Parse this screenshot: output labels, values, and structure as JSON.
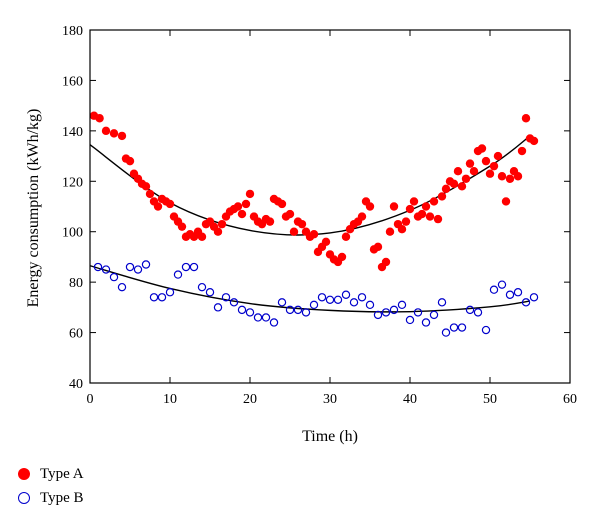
{
  "chart_data": {
    "type": "scatter",
    "xlabel": "Time (h)",
    "ylabel": "Energy consumption (kWh/kg)",
    "xlim": [
      0,
      60
    ],
    "ylim": [
      40,
      180
    ],
    "x_ticks": [
      0,
      10,
      20,
      30,
      40,
      50,
      60
    ],
    "y_ticks": [
      40,
      60,
      80,
      100,
      120,
      140,
      160,
      180
    ],
    "grid": false,
    "legend_position": "bottom-left",
    "series": [
      {
        "name": "Type A",
        "color": "#ff0000",
        "marker": "filled-circle",
        "points": [
          [
            0.5,
            146
          ],
          [
            1.2,
            145
          ],
          [
            2,
            140
          ],
          [
            3,
            139
          ],
          [
            4,
            138
          ],
          [
            4.5,
            129
          ],
          [
            5,
            128
          ],
          [
            5.5,
            123
          ],
          [
            6,
            121
          ],
          [
            6.5,
            119
          ],
          [
            7,
            118
          ],
          [
            7.5,
            115
          ],
          [
            8,
            112
          ],
          [
            8.5,
            110
          ],
          [
            9,
            113
          ],
          [
            9.5,
            112
          ],
          [
            10,
            111
          ],
          [
            10.5,
            106
          ],
          [
            11,
            104
          ],
          [
            11.5,
            102
          ],
          [
            12,
            98
          ],
          [
            12.5,
            99
          ],
          [
            13,
            98
          ],
          [
            13.5,
            100
          ],
          [
            14,
            98
          ],
          [
            14.5,
            103
          ],
          [
            15,
            104
          ],
          [
            15.5,
            102
          ],
          [
            16,
            100
          ],
          [
            16.5,
            103
          ],
          [
            17,
            106
          ],
          [
            17.5,
            108
          ],
          [
            18,
            109
          ],
          [
            18.5,
            110
          ],
          [
            19,
            107
          ],
          [
            19.5,
            111
          ],
          [
            20,
            115
          ],
          [
            20.5,
            106
          ],
          [
            21,
            104
          ],
          [
            21.5,
            103
          ],
          [
            22,
            105
          ],
          [
            22.5,
            104
          ],
          [
            23,
            113
          ],
          [
            23.5,
            112
          ],
          [
            24,
            111
          ],
          [
            24.5,
            106
          ],
          [
            25,
            107
          ],
          [
            25.5,
            100
          ],
          [
            26,
            104
          ],
          [
            26.5,
            103
          ],
          [
            27,
            100
          ],
          [
            27.5,
            98
          ],
          [
            28,
            99
          ],
          [
            28.5,
            92
          ],
          [
            29,
            94
          ],
          [
            29.5,
            96
          ],
          [
            30,
            91
          ],
          [
            30.5,
            89
          ],
          [
            31,
            88
          ],
          [
            31.5,
            90
          ],
          [
            32,
            98
          ],
          [
            32.5,
            101
          ],
          [
            33,
            103
          ],
          [
            33.5,
            104
          ],
          [
            34,
            106
          ],
          [
            34.5,
            112
          ],
          [
            35,
            110
          ],
          [
            35.5,
            93
          ],
          [
            36,
            94
          ],
          [
            36.5,
            86
          ],
          [
            37,
            88
          ],
          [
            37.5,
            100
          ],
          [
            38,
            110
          ],
          [
            38.5,
            103
          ],
          [
            39,
            101
          ],
          [
            39.5,
            104
          ],
          [
            40,
            109
          ],
          [
            40.5,
            112
          ],
          [
            41,
            106
          ],
          [
            41.5,
            107
          ],
          [
            42,
            110
          ],
          [
            42.5,
            106
          ],
          [
            43,
            112
          ],
          [
            43.5,
            105
          ],
          [
            44,
            114
          ],
          [
            44.5,
            117
          ],
          [
            45,
            120
          ],
          [
            45.5,
            119
          ],
          [
            46,
            124
          ],
          [
            46.5,
            118
          ],
          [
            47,
            121
          ],
          [
            47.5,
            127
          ],
          [
            48,
            124
          ],
          [
            48.5,
            132
          ],
          [
            49,
            133
          ],
          [
            49.5,
            128
          ],
          [
            50,
            123
          ],
          [
            50.5,
            126
          ],
          [
            51,
            130
          ],
          [
            51.5,
            122
          ],
          [
            52,
            112
          ],
          [
            52.5,
            121
          ],
          [
            53,
            124
          ],
          [
            53.5,
            122
          ],
          [
            54,
            132
          ],
          [
            54.5,
            145
          ],
          [
            55,
            137
          ],
          [
            55.5,
            136
          ]
        ],
        "fit": [
          [
            0,
            134.5
          ],
          [
            10,
            111.5
          ],
          [
            20,
            100.5
          ],
          [
            30,
            99.5
          ],
          [
            40,
            108.5
          ],
          [
            50,
            126
          ],
          [
            55,
            138
          ]
        ]
      },
      {
        "name": "Type B",
        "color": "#0000cc",
        "marker": "hollow-circle",
        "points": [
          [
            1,
            86
          ],
          [
            2,
            85
          ],
          [
            3,
            82
          ],
          [
            4,
            78
          ],
          [
            5,
            86
          ],
          [
            6,
            85
          ],
          [
            7,
            87
          ],
          [
            8,
            74
          ],
          [
            9,
            74
          ],
          [
            10,
            76
          ],
          [
            11,
            83
          ],
          [
            12,
            86
          ],
          [
            13,
            86
          ],
          [
            14,
            78
          ],
          [
            15,
            76
          ],
          [
            16,
            70
          ],
          [
            17,
            74
          ],
          [
            18,
            72
          ],
          [
            19,
            69
          ],
          [
            20,
            68
          ],
          [
            21,
            66
          ],
          [
            22,
            66
          ],
          [
            23,
            64
          ],
          [
            24,
            72
          ],
          [
            25,
            69
          ],
          [
            26,
            69
          ],
          [
            27,
            68
          ],
          [
            28,
            71
          ],
          [
            29,
            74
          ],
          [
            30,
            73
          ],
          [
            31,
            73
          ],
          [
            32,
            75
          ],
          [
            33,
            72
          ],
          [
            34,
            74
          ],
          [
            35,
            71
          ],
          [
            36,
            67
          ],
          [
            37,
            68
          ],
          [
            38,
            69
          ],
          [
            39,
            71
          ],
          [
            40,
            65
          ],
          [
            41,
            68
          ],
          [
            42,
            64
          ],
          [
            43,
            67
          ],
          [
            44,
            72
          ],
          [
            44.5,
            60
          ],
          [
            45.5,
            62
          ],
          [
            46.5,
            62
          ],
          [
            47.5,
            69
          ],
          [
            48.5,
            68
          ],
          [
            49.5,
            61
          ],
          [
            50.5,
            77
          ],
          [
            51.5,
            79
          ],
          [
            52.5,
            75
          ],
          [
            53.5,
            76
          ],
          [
            54.5,
            72
          ],
          [
            55.5,
            74
          ]
        ],
        "fit": [
          [
            0,
            86.5
          ],
          [
            10,
            77.5
          ],
          [
            20,
            71.5
          ],
          [
            30,
            68.8
          ],
          [
            40,
            68.3
          ],
          [
            50,
            70.2
          ],
          [
            55,
            72.5
          ]
        ]
      }
    ]
  }
}
